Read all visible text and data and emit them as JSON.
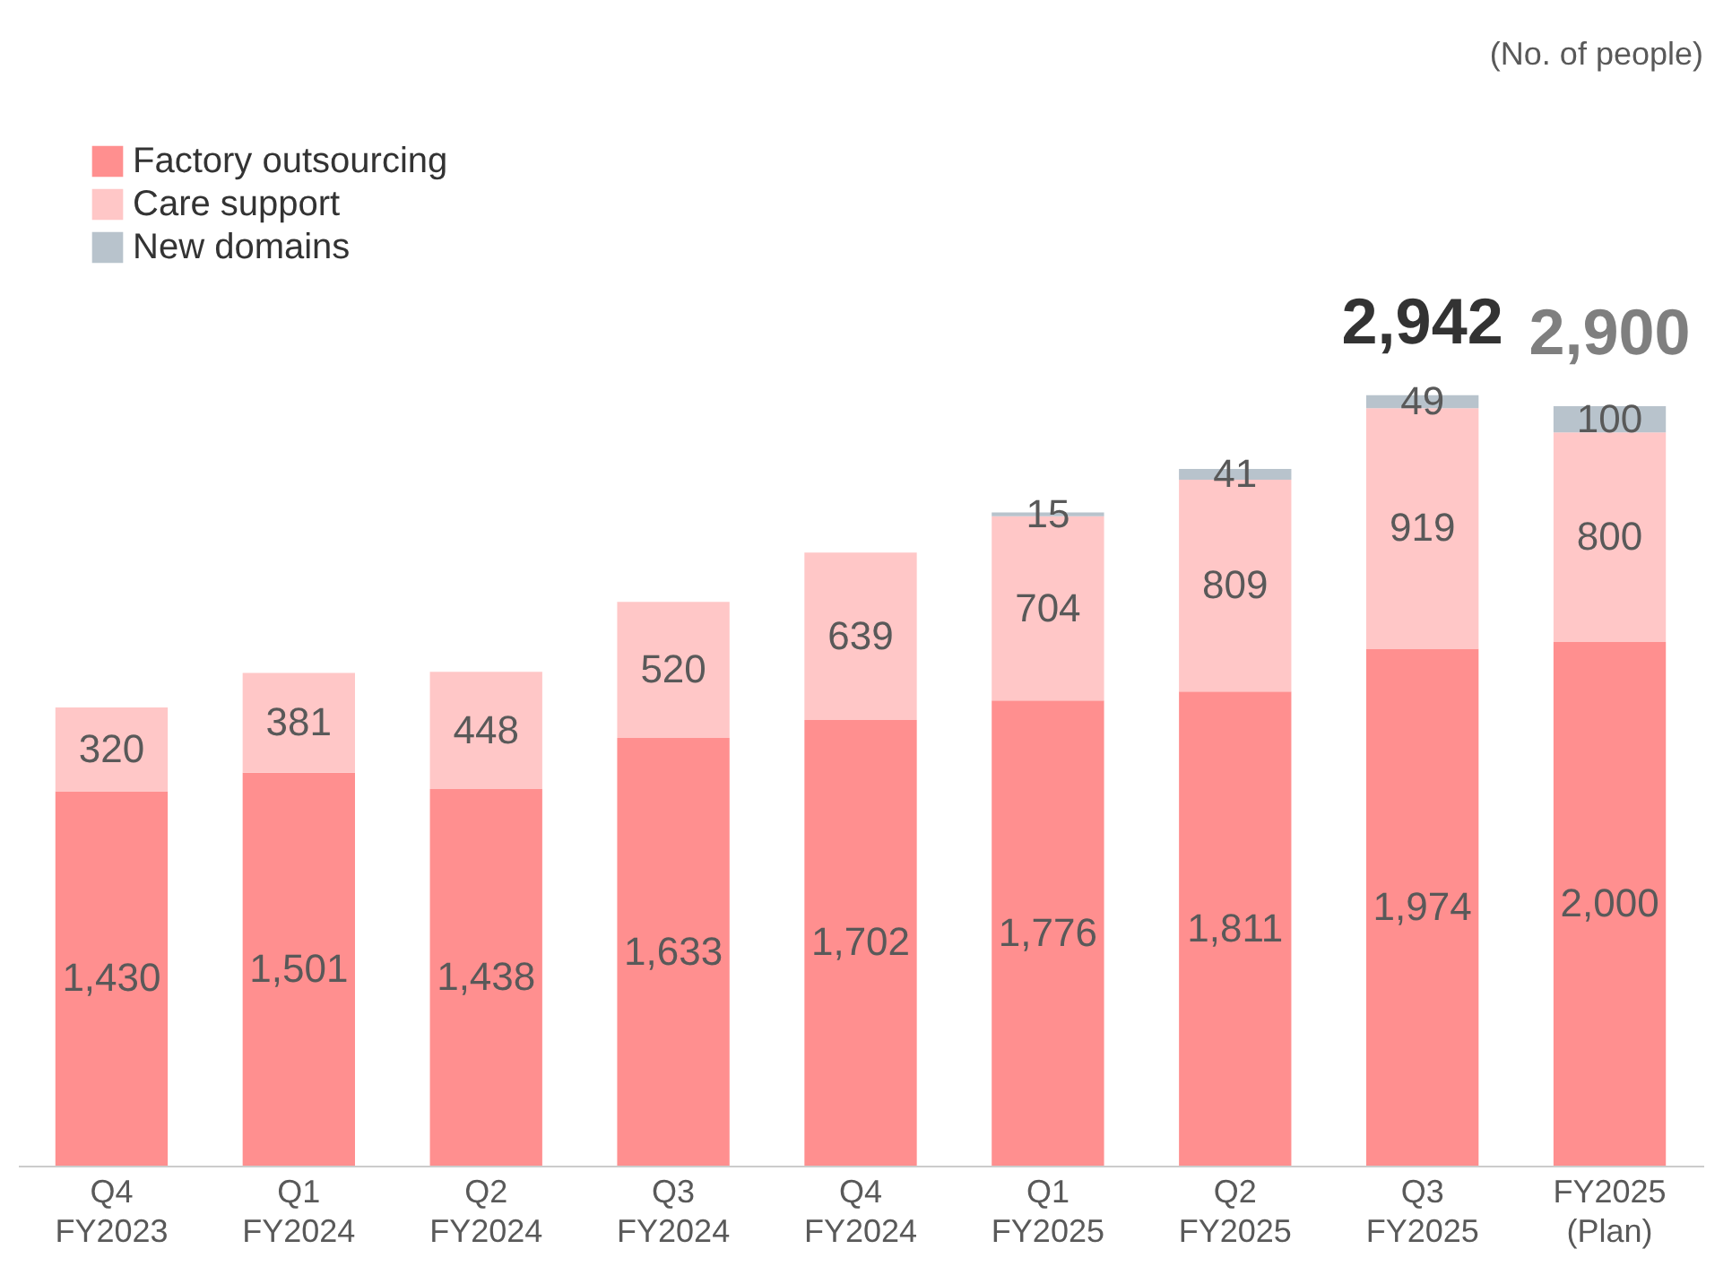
{
  "chart_data": {
    "type": "bar",
    "stacked": true,
    "legend": "top left",
    "annotations": [
      "(No. of people)"
    ],
    "categories": [
      "Q4 FY2023",
      "Q1 FY2024",
      "Q2 FY2024",
      "Q3 FY2024",
      "Q4 FY2024",
      "Q1 FY2025",
      "Q2 FY2025",
      "Q3 FY2025",
      "FY2025 (Plan)"
    ],
    "series": [
      {
        "name": "Factory outsourcing",
        "color": "#ff8f8f",
        "values": [
          1430,
          1501,
          1438,
          1633,
          1702,
          1776,
          1811,
          1974,
          2000
        ],
        "value_labels": [
          "1,430",
          "1,501",
          "1,438",
          "1,633",
          "1,702",
          "1,776",
          "1,811",
          "1,974",
          "2,000"
        ]
      },
      {
        "name": "Care support",
        "color": "#ffc7c7",
        "values": [
          320,
          381,
          448,
          520,
          639,
          704,
          809,
          919,
          800
        ],
        "value_labels": [
          "320",
          "381",
          "448",
          "520",
          "639",
          "704",
          "809",
          "919",
          "800"
        ]
      },
      {
        "name": "New domains",
        "color": "#b8c3cc",
        "values": [
          null,
          null,
          null,
          null,
          null,
          15,
          41,
          49,
          100
        ],
        "value_labels": [
          null,
          null,
          null,
          null,
          null,
          "15",
          "41",
          "49",
          "100"
        ]
      }
    ],
    "totals": [
      null,
      null,
      null,
      null,
      null,
      null,
      null,
      "2,942",
      "2,900"
    ]
  }
}
